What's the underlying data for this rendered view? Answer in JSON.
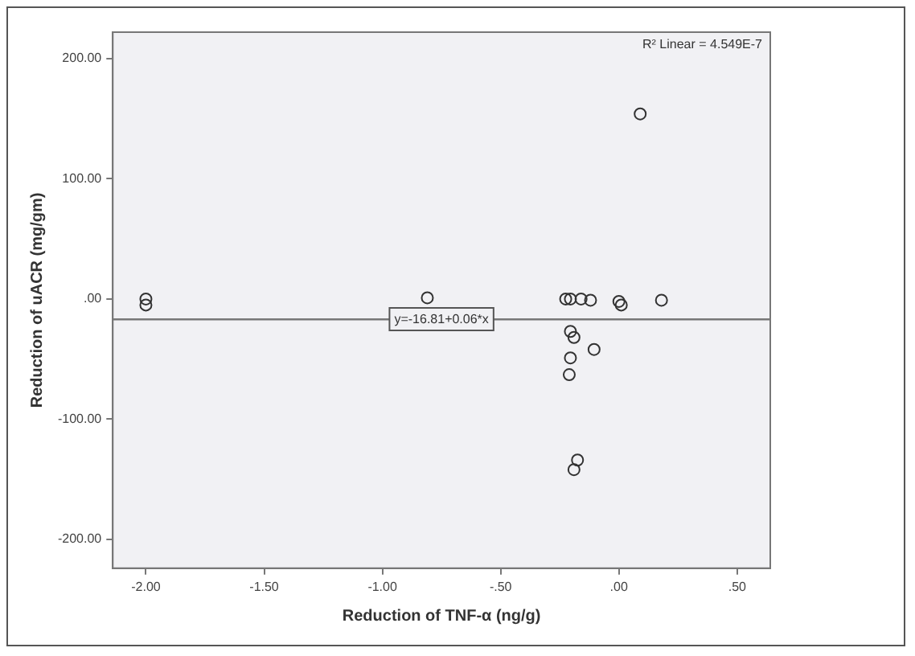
{
  "chart_data": {
    "type": "scatter",
    "xlabel": "Reduction of TNF-α (ng/g)",
    "ylabel": "Reduction of uACR (mg/gm)",
    "xlim": [
      -2.14,
      0.64
    ],
    "ylim": [
      -224,
      222
    ],
    "xticks": [
      {
        "value": -2,
        "label": "-2.00"
      },
      {
        "value": -1.5,
        "label": "-1.50"
      },
      {
        "value": -1,
        "label": "-1.00"
      },
      {
        "value": -0.5,
        "label": "-.50"
      },
      {
        "value": 0,
        "label": ".00"
      },
      {
        "value": 0.5,
        "label": ".50"
      }
    ],
    "yticks": [
      {
        "value": -200,
        "label": "-200.00"
      },
      {
        "value": -100,
        "label": "-100.00"
      },
      {
        "value": 0,
        "label": ".00"
      },
      {
        "value": 100,
        "label": "100.00"
      },
      {
        "value": 200,
        "label": "200.00"
      }
    ],
    "marker": "circle",
    "grid": false,
    "legend": false,
    "series": [
      {
        "color": "#333333",
        "x": [
          -2.0,
          -2.0,
          -0.81,
          -0.225,
          -0.205,
          -0.16,
          -0.12,
          0.0,
          0.01,
          0.09,
          0.18,
          -0.205,
          -0.19,
          -0.105,
          -0.205,
          -0.21,
          -0.175,
          -0.19
        ],
        "values": [
          0,
          -5,
          1,
          0,
          0,
          0,
          -1,
          -2,
          -5,
          154,
          -1,
          -27,
          -32,
          -42,
          -49,
          -63,
          -134,
          -142
        ]
      },
      {
        "type": "line",
        "marker": "none",
        "color": "#777777",
        "x": [
          -2.14,
          0.64
        ],
        "values": [
          -17,
          -17
        ]
      }
    ],
    "annotations": [
      "R² Linear = 4.549E-7",
      {
        "text": "y=-16.81+0.06*x",
        "x": -0.75,
        "y": -16.85
      }
    ]
  }
}
